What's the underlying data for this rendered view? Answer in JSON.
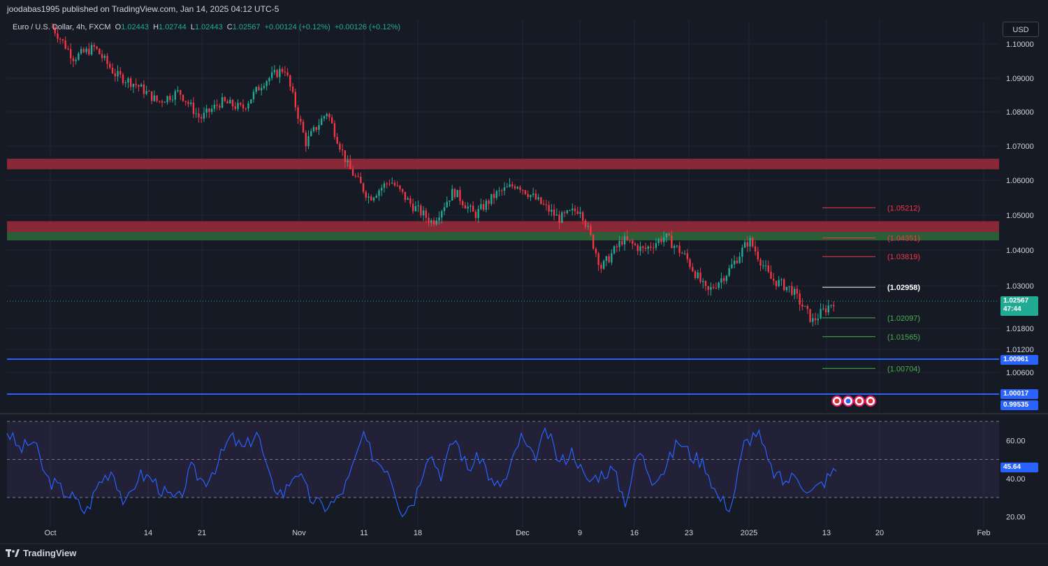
{
  "header": {
    "publish_line": "joodabas1995 published on TradingView.com, Jan 14, 2025 04:12 UTC-5",
    "symbol_line": "Euro / U.S. Dollar, 4h, FXCM",
    "open_label": "O",
    "open": "1.02443",
    "high_label": "H",
    "high": "1.02744",
    "low_label": "L",
    "low": "1.02443",
    "close_label": "C",
    "close": "1.02567",
    "change1": "+0.00124 (+0.12%)",
    "change2": "+0.00126 (+0.12%)"
  },
  "currency_button": "USD",
  "footer": {
    "logo_text": "TradingView"
  },
  "colors": {
    "background": "#161a25",
    "up": "#22ab94",
    "down": "#f23645",
    "level_blue": "#2962ff",
    "rsi_line": "#2962ff",
    "resistance_zone": "#9c2a3a",
    "support_zone": "#2f6b3a",
    "red_level": "#f23645",
    "green_level": "#4caf50",
    "white_level": "#ffffff"
  },
  "chart_data": [
    {
      "type": "candlestick",
      "timeframe": "4h",
      "symbol": "EURUSD",
      "x_tick_labels": [
        "Oct",
        "14",
        "21",
        "Nov",
        "11",
        "18",
        "Dec",
        "9",
        "16",
        "23",
        "2025",
        "13",
        "20",
        "Feb"
      ],
      "y_tick_labels": [
        "1.10000",
        "1.09000",
        "1.08000",
        "1.07000",
        "1.06000",
        "1.05000",
        "1.04000",
        "1.03000",
        "1.01800",
        "1.01200",
        "1.00600"
      ],
      "approx_close_path": [
        1.105,
        1.096,
        1.099,
        1.091,
        1.088,
        1.083,
        1.086,
        1.078,
        1.083,
        1.081,
        1.089,
        1.093,
        1.071,
        1.08,
        1.064,
        1.055,
        1.06,
        1.053,
        1.048,
        1.057,
        1.05,
        1.056,
        1.059,
        1.054,
        1.049,
        1.052,
        1.035,
        1.043,
        1.04,
        1.044,
        1.038,
        1.028,
        1.034,
        1.043,
        1.032,
        1.029,
        1.02,
        1.0257
      ],
      "zones": [
        {
          "name": "resistance-upper",
          "from": 1.0632,
          "to": 1.0663
        },
        {
          "name": "resistance-lower",
          "from": 1.0452,
          "to": 1.0483
        },
        {
          "name": "support-green",
          "from": 1.0428,
          "to": 1.0452
        }
      ],
      "levels": [
        {
          "value": 1.05212,
          "label": "(1.05212)",
          "color": "red"
        },
        {
          "value": 1.04351,
          "label": "(1.04351)",
          "color": "red"
        },
        {
          "value": 1.03819,
          "label": "(1.03819)",
          "color": "red"
        },
        {
          "value": 1.02958,
          "label": "(1.02958)",
          "color": "white"
        },
        {
          "value": 1.02097,
          "label": "(1.02097)",
          "color": "green"
        },
        {
          "value": 1.01565,
          "label": "(1.01565)",
          "color": "green"
        },
        {
          "value": 1.00704,
          "label": "(1.00704)",
          "color": "green"
        }
      ],
      "horizontal_lines": [
        {
          "value": 1.00961,
          "label": "1.00961"
        },
        {
          "value": 1.00017,
          "label": "1.00017"
        }
      ],
      "last_price": {
        "value": "1.02567",
        "countdown": "47:44"
      },
      "bottom_tag": "0.99535"
    },
    {
      "type": "line",
      "indicator": "RSI",
      "y_tick_labels": [
        "60.00",
        "40.00",
        "20.00"
      ],
      "band": [
        30,
        70
      ],
      "midline": 50,
      "approx_values": [
        65,
        55,
        60,
        40,
        35,
        30,
        22,
        38,
        45,
        25,
        42,
        40,
        32,
        28,
        45,
        38,
        48,
        62,
        55,
        65,
        38,
        32,
        45,
        30,
        25,
        28,
        40,
        62,
        50,
        45,
        22,
        30,
        55,
        42,
        62,
        45,
        52,
        35,
        40,
        62,
        50,
        65,
        48,
        55,
        38,
        42,
        45,
        28,
        55,
        40,
        45,
        60,
        52,
        48,
        30,
        25,
        58,
        65,
        45,
        38,
        42,
        32,
        38,
        45
      ],
      "last_value": "45.64"
    }
  ]
}
